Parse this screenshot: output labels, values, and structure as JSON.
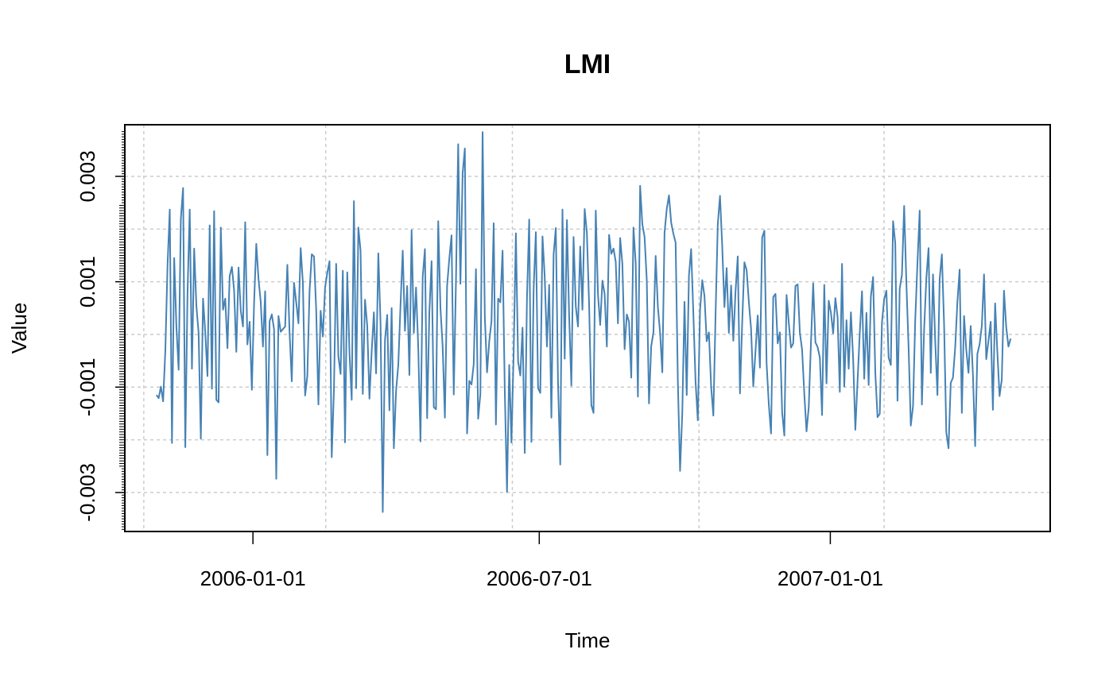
{
  "chart_data": {
    "type": "line",
    "title": "LMI",
    "xlabel": "Time",
    "ylabel": "Value",
    "x_range": [
      "2005-10-12",
      "2007-05-20"
    ],
    "ylim": [
      -0.00374,
      0.00398
    ],
    "x_ticks": [
      {
        "date": "2006-01-01",
        "label": "2006-01-01"
      },
      {
        "date": "2006-07-01",
        "label": "2006-07-01"
      },
      {
        "date": "2007-01-01",
        "label": "2007-01-01"
      }
    ],
    "y_ticks": [
      {
        "value": -0.003,
        "label": "-0.003"
      },
      {
        "value": -0.001,
        "label": "-0.001"
      },
      {
        "value": 0.001,
        "label": "0.001"
      },
      {
        "value": 0.003,
        "label": "0.003"
      }
    ],
    "grid": true,
    "grid_x_dates": [
      "2005-10-24",
      "2006-02-16",
      "2006-06-14",
      "2006-10-10",
      "2007-02-04"
    ],
    "grid_y_values": [
      -0.003,
      -0.002,
      -0.001,
      0.0,
      0.001,
      0.002,
      0.003
    ],
    "line_color": "#4682B4",
    "start_date": "2005-11-01",
    "end_date": "2007-04-25",
    "values": [
      -0.00115,
      -0.00121,
      -0.00099,
      -0.00127,
      -0.00031,
      0.00132,
      0.00237,
      -0.00206,
      0.00145,
      0.00014,
      -0.00067,
      0.0022,
      0.00278,
      -0.00214,
      0.00079,
      0.00237,
      -0.00065,
      0.00163,
      0.00054,
      3e-05,
      -0.00198,
      0.00068,
      4e-05,
      -0.00079,
      0.00207,
      -0.00103,
      0.00234,
      -0.00124,
      -0.00129,
      0.00203,
      0.00047,
      0.00068,
      -0.00026,
      0.00111,
      0.00128,
      0.00084,
      -0.00033,
      0.00127,
      0.00045,
      0.00015,
      0.00213,
      -0.00019,
      0.00024,
      -0.00105,
      0.00059,
      0.00172,
      0.00105,
      0.00062,
      -0.00023,
      0.00082,
      -0.00229,
      0.00025,
      0.00038,
      0.0001,
      -0.00274,
      0.00035,
      5e-05,
      0.0001,
      0.00015,
      0.00132,
      3e-05,
      -0.00089,
      0.00098,
      0.00061,
      0.00021,
      0.00164,
      0.00098,
      -0.00116,
      -0.00079,
      0.00082,
      0.00152,
      0.00148,
      0.00047,
      -0.00133,
      0.00045,
      -4e-05,
      0.00089,
      0.00117,
      0.00139,
      -0.00233,
      -0.00105,
      0.00134,
      -0.00042,
      -0.00075,
      0.00121,
      -0.00205,
      0.00118,
      -0.00035,
      -0.00124,
      0.00253,
      -0.00102,
      0.00203,
      0.00159,
      -0.00113,
      0.00066,
      0.00017,
      -0.00122,
      -0.00033,
      0.00042,
      -0.00074,
      0.00154,
      0.00022,
      -0.00337,
      -0.00011,
      0.00037,
      -0.00144,
      0.0005,
      -0.00216,
      -0.00107,
      -0.00058,
      0.00055,
      0.00159,
      7e-05,
      0.00092,
      -0.00077,
      0.00198,
      3e-05,
      0.00089,
      -0.00025,
      -0.00203,
      0.00109,
      0.00162,
      -0.00159,
      0.00042,
      0.00139,
      -0.00138,
      -0.00142,
      0.00215,
      0.0005,
      -0.00023,
      -0.00158,
      0.00092,
      0.00144,
      0.00188,
      -0.00114,
      0.00102,
      0.00361,
      0.00096,
      0.00306,
      0.00353,
      -0.00188,
      -0.00088,
      -0.00095,
      -0.00056,
      0.00124,
      -0.0016,
      -0.00113,
      0.00384,
      0.00034,
      -0.00072,
      -0.00013,
      0.00025,
      0.00211,
      -0.00171,
      0.00068,
      0.00061,
      0.00159,
      -0.00107,
      -0.00299,
      -0.00058,
      -0.00205,
      -0.00034,
      0.00192,
      -0.00051,
      -0.00078,
      0.00013,
      -0.00225,
      0.00069,
      0.00218,
      -0.00204,
      0.00086,
      0.00194,
      -0.00102,
      -0.00111,
      0.00186,
      0.00109,
      -0.00023,
      0.00094,
      -0.00158,
      0.00152,
      0.00202,
      -0.00092,
      -0.00247,
      0.00237,
      -0.00046,
      0.00217,
      0.00036,
      -0.00097,
      0.00185,
      0.00053,
      0.00015,
      0.00167,
      0.00047,
      0.00238,
      0.00193,
      0.00058,
      -0.00134,
      -0.00149,
      0.00235,
      0.00076,
      0.00018,
      0.00102,
      0.00077,
      -0.00023,
      0.00189,
      0.00153,
      0.00163,
      0.00138,
      0.00021,
      0.00183,
      0.00134,
      -0.00028,
      0.00038,
      0.00024,
      -0.00082,
      0.00203,
      0.00135,
      -0.00118,
      0.00282,
      0.00209,
      0.00185,
      0.00103,
      -0.00131,
      -0.00022,
      4e-05,
      0.00149,
      0.00052,
      3e-05,
      -0.00072,
      0.00193,
      0.00238,
      0.00264,
      0.00212,
      0.00191,
      0.00174,
      -0.00089,
      -0.00259,
      -0.00149,
      0.00062,
      -0.00115,
      0.00112,
      0.00162,
      0.00038,
      -0.00091,
      -0.00163,
      0.00046,
      0.00103,
      0.00073,
      -0.00013,
      4e-05,
      -0.00099,
      -0.00154,
      0.00038,
      0.00209,
      0.00263,
      0.00168,
      0.00052,
      0.00126,
      3e-05,
      0.00093,
      -0.00012,
      0.00082,
      0.00148,
      -0.00112,
      0.00022,
      0.00137,
      0.00122,
      0.00062,
      0.00011,
      -0.00099,
      -0.00032,
      0.00036,
      -0.00063,
      0.00184,
      0.00197,
      -0.00055,
      -0.00133,
      -0.00188,
      0.00071,
      0.00077,
      -0.00017,
      4e-05,
      -0.00147,
      -0.00192,
      0.00075,
      0.00022,
      -0.00025,
      -0.00017,
      0.00092,
      0.00095,
      3e-05,
      -0.00029,
      -0.00113,
      -0.00184,
      -0.00138,
      -0.00016,
      0.00097,
      -0.00015,
      -0.00024,
      -0.00044,
      -0.00153,
      0.00094,
      -0.00093,
      0.00064,
      0.00041,
      2e-05,
      0.00069,
      0.00033,
      -0.00109,
      0.00134,
      -0.00099,
      0.00027,
      -0.00065,
      0.00042,
      -0.00045,
      -0.00181,
      -0.00089,
      3e-05,
      0.00082,
      -0.00084,
      0.00041,
      -0.00096,
      0.00072,
      0.00109,
      -0.00073,
      -0.00157,
      -0.00151,
      0.00023,
      0.00067,
      0.00083,
      -0.00044,
      -0.00058,
      0.00215,
      0.00173,
      -0.00126,
      0.00087,
      0.00113,
      0.00244,
      0.00098,
      -0.00024,
      -0.00173,
      -0.00136,
      0.00028,
      0.00136,
      0.00235,
      -0.00133,
      9e-05,
      0.00107,
      0.00164,
      -0.00073,
      0.00114,
      -0.00012,
      -0.00115,
      0.00105,
      0.00152,
      0.00019,
      -0.00186,
      -0.00216,
      -0.00092,
      -0.00082,
      -0.00025,
      0.00062,
      0.00123,
      -0.00149,
      0.00035,
      -0.00029,
      -0.00073,
      0.00016,
      -0.00076,
      -0.00212,
      -0.00037,
      -0.00019,
      0.00016,
      0.00114,
      -0.00047,
      -0.00012,
      0.00024,
      -0.00143,
      0.00059,
      -0.00033,
      -0.00117,
      -0.00086,
      0.00083,
      0.00014,
      -0.00023,
      -8e-05
    ]
  }
}
